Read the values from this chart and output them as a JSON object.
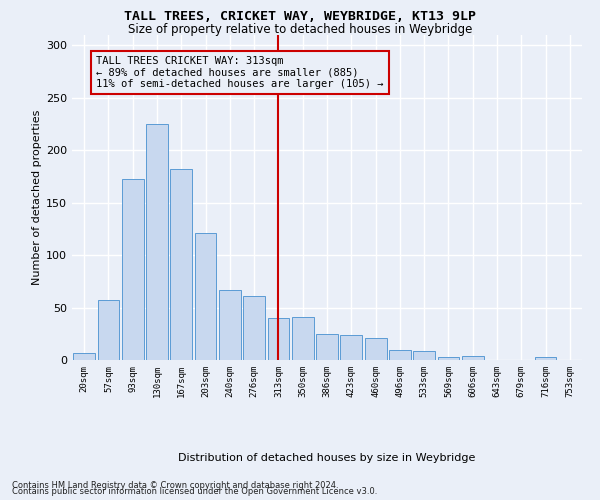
{
  "title": "TALL TREES, CRICKET WAY, WEYBRIDGE, KT13 9LP",
  "subtitle": "Size of property relative to detached houses in Weybridge",
  "xlabel": "Distribution of detached houses by size in Weybridge",
  "ylabel": "Number of detached properties",
  "bar_labels": [
    "20sqm",
    "57sqm",
    "93sqm",
    "130sqm",
    "167sqm",
    "203sqm",
    "240sqm",
    "276sqm",
    "313sqm",
    "350sqm",
    "386sqm",
    "423sqm",
    "460sqm",
    "496sqm",
    "533sqm",
    "569sqm",
    "606sqm",
    "643sqm",
    "679sqm",
    "716sqm",
    "753sqm"
  ],
  "bar_values": [
    7,
    57,
    173,
    225,
    182,
    121,
    67,
    61,
    40,
    41,
    25,
    24,
    21,
    10,
    9,
    3,
    4,
    0,
    0,
    3,
    0
  ],
  "bar_color": "#c8d8ef",
  "bar_edge_color": "#5b9bd5",
  "vline_x": 8,
  "vline_color": "#cc0000",
  "annotation_title": "TALL TREES CRICKET WAY: 313sqm",
  "annotation_line1": "← 89% of detached houses are smaller (885)",
  "annotation_line2": "11% of semi-detached houses are larger (105) →",
  "annotation_box_color": "#cc0000",
  "ylim": [
    0,
    310
  ],
  "yticks": [
    0,
    50,
    100,
    150,
    200,
    250,
    300
  ],
  "footnote1": "Contains HM Land Registry data © Crown copyright and database right 2024.",
  "footnote2": "Contains public sector information licensed under the Open Government Licence v3.0.",
  "background_color": "#eaeff8",
  "grid_color": "#ffffff"
}
